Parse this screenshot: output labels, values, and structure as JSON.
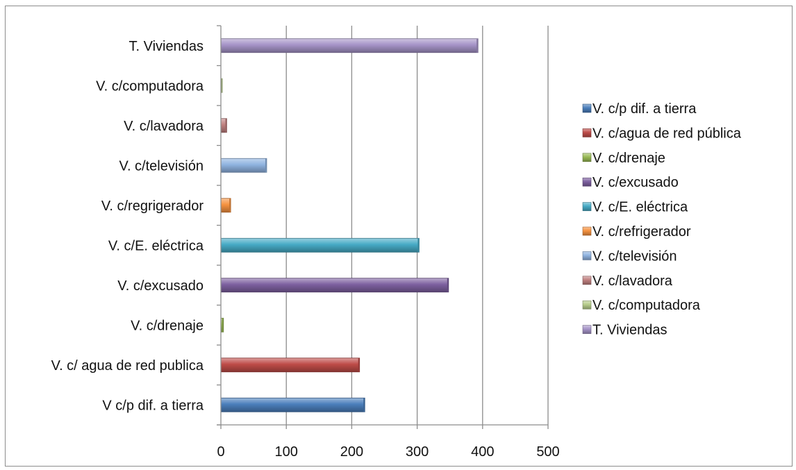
{
  "chart_data": {
    "type": "bar",
    "orientation": "horizontal",
    "categories": [
      "V c/p dif. a tierra",
      "V. c/ agua de red publica",
      "V. c/drenaje",
      "V. c/excusado",
      "V. c/E. eléctrica",
      "V. c/regrigerador",
      "V. c/televisión",
      "V. c/lavadora",
      "V. c/computadora",
      "T. Viviendas"
    ],
    "series": [
      {
        "name": "V. c/p dif. a tierra",
        "color": "#4a7ebb",
        "values": [
          220,
          null,
          null,
          null,
          null,
          null,
          null,
          null,
          null,
          null
        ]
      },
      {
        "name": "V. c/agua de red pública",
        "color": "#be4b48",
        "values": [
          null,
          212,
          null,
          null,
          null,
          null,
          null,
          null,
          null,
          null
        ]
      },
      {
        "name": "V. c/drenaje",
        "color": "#98b954",
        "values": [
          null,
          null,
          4,
          null,
          null,
          null,
          null,
          null,
          null,
          null
        ]
      },
      {
        "name": "V. c/excusado",
        "color": "#7d60a0",
        "values": [
          null,
          null,
          null,
          348,
          null,
          null,
          null,
          null,
          null,
          null
        ]
      },
      {
        "name": "V. c/E. eléctrica",
        "color": "#46aac5",
        "values": [
          null,
          null,
          null,
          null,
          303,
          null,
          null,
          null,
          null,
          null
        ]
      },
      {
        "name": "V. c/refrigerador",
        "color": "#f69240",
        "values": [
          null,
          null,
          null,
          null,
          null,
          15,
          null,
          null,
          null,
          null
        ]
      },
      {
        "name": "V. c/televisión",
        "color": "#8fb3e0",
        "values": [
          null,
          null,
          null,
          null,
          null,
          null,
          70,
          null,
          null,
          null
        ]
      },
      {
        "name": "V. c/lavadora",
        "color": "#c0807f",
        "values": [
          null,
          null,
          null,
          null,
          null,
          null,
          null,
          9,
          null,
          null
        ]
      },
      {
        "name": "V. c/computadora",
        "color": "#b6cc8a",
        "values": [
          null,
          null,
          null,
          null,
          null,
          null,
          null,
          null,
          2,
          null
        ]
      },
      {
        "name": "T. Viviendas",
        "color": "#a593c7",
        "values": [
          null,
          null,
          null,
          null,
          null,
          null,
          null,
          null,
          null,
          393
        ]
      }
    ],
    "xlim": [
      0,
      500
    ],
    "x_ticks": [
      0,
      100,
      200,
      300,
      400,
      500
    ],
    "grid": "vertical",
    "legend_position": "right"
  }
}
